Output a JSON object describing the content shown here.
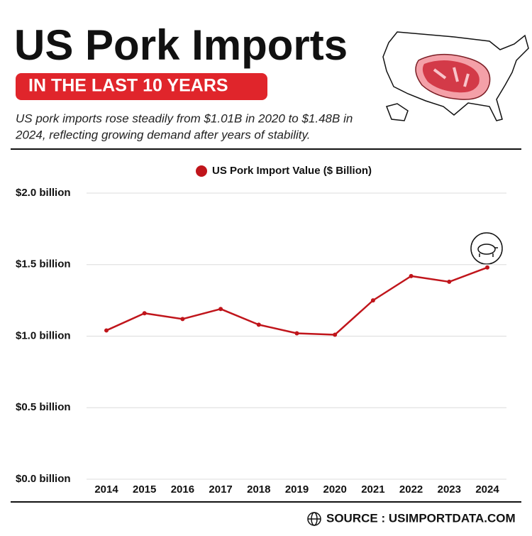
{
  "header": {
    "title": "US Pork Imports",
    "badge": "IN THE LAST 10 YEARS",
    "description_lines": [
      "US pork imports rose steadily from $1.01B in 2020 to $1.48B in",
      "2024, reflecting growing demand after years of stability."
    ]
  },
  "chart_data": {
    "type": "line",
    "categories": [
      "2014",
      "2015",
      "2016",
      "2017",
      "2018",
      "2019",
      "2020",
      "2021",
      "2022",
      "2023",
      "2024"
    ],
    "series": [
      {
        "name": "US Pork Import Value ($ Billion)",
        "color": "#c0151b",
        "values": [
          1.04,
          1.16,
          1.12,
          1.19,
          1.08,
          1.02,
          1.01,
          1.25,
          1.42,
          1.38,
          1.48
        ]
      }
    ],
    "ylim": [
      0,
      2.0
    ],
    "yticks": [
      {
        "value": 0,
        "label": "$0.0 billion"
      },
      {
        "value": 0.5,
        "label": "$0.5 billion"
      },
      {
        "value": 1.0,
        "label": "$1.0 billion"
      },
      {
        "value": 1.5,
        "label": "$1.5 billion"
      },
      {
        "value": 2.0,
        "label": "$2.0 billion"
      }
    ],
    "grid": true,
    "legend": "top"
  },
  "footer": {
    "source": "SOURCE : USIMPORTDATA.COM"
  }
}
